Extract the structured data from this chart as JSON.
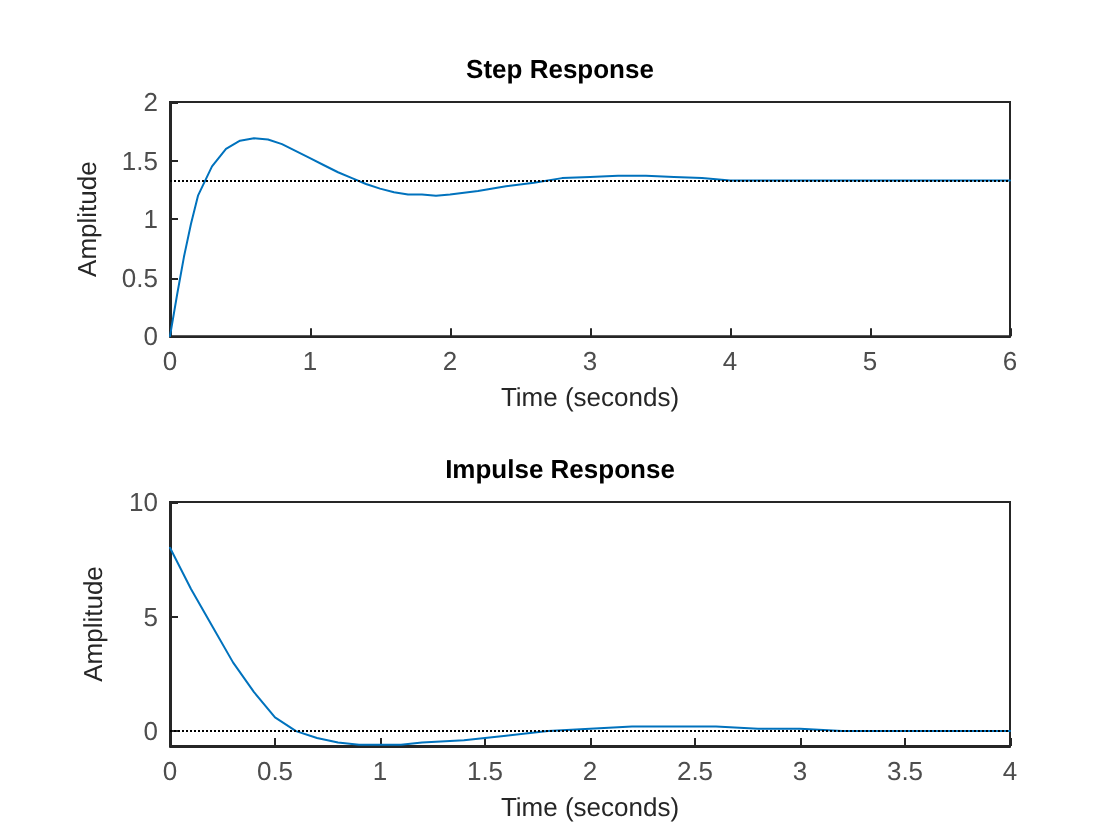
{
  "chart_data": [
    {
      "type": "line",
      "title": "Step Response",
      "xlabel": "Time (seconds)",
      "ylabel": "Amplitude",
      "xlim": [
        0,
        6
      ],
      "xticks": [
        0,
        1,
        2,
        3,
        4,
        5,
        6
      ],
      "ylim": [
        0,
        2
      ],
      "yticks": [
        0,
        0.5,
        1,
        1.5,
        2
      ],
      "marker": "none",
      "line_style": "solid",
      "ref_lines": [
        {
          "axis": "y",
          "value": 1.33,
          "label": null,
          "color": "#000000",
          "line_style": "dotted"
        }
      ],
      "series": [
        {
          "color": "#0072bd",
          "x": [
            0,
            0.05,
            0.1,
            0.15,
            0.2,
            0.3,
            0.4,
            0.5,
            0.6,
            0.7,
            0.8,
            0.9,
            1.0,
            1.1,
            1.2,
            1.3,
            1.4,
            1.5,
            1.6,
            1.7,
            1.8,
            1.9,
            2.0,
            2.2,
            2.4,
            2.6,
            2.8,
            3.0,
            3.2,
            3.4,
            3.6,
            3.8,
            4.0,
            5.0,
            6.0
          ],
          "values": [
            0,
            0.35,
            0.68,
            0.96,
            1.2,
            1.45,
            1.6,
            1.67,
            1.69,
            1.68,
            1.64,
            1.58,
            1.52,
            1.46,
            1.4,
            1.35,
            1.3,
            1.26,
            1.23,
            1.21,
            1.21,
            1.2,
            1.21,
            1.24,
            1.28,
            1.31,
            1.35,
            1.36,
            1.37,
            1.37,
            1.36,
            1.35,
            1.33,
            1.33,
            1.33
          ]
        }
      ]
    },
    {
      "type": "line",
      "title": "Impulse Response",
      "xlabel": "Time (seconds)",
      "ylabel": "Amplitude",
      "xlim": [
        0,
        4
      ],
      "xticks": [
        0,
        0.5,
        1,
        1.5,
        2,
        2.5,
        3,
        3.5,
        4
      ],
      "ylim": [
        -0.65,
        10
      ],
      "yticks": [
        0,
        5,
        10
      ],
      "marker": "none",
      "line_style": "solid",
      "ref_lines": [
        {
          "axis": "y",
          "value": 0,
          "label": null,
          "color": "#000000",
          "line_style": "dotted"
        }
      ],
      "series": [
        {
          "color": "#0072bd",
          "x": [
            0,
            0.1,
            0.2,
            0.3,
            0.4,
            0.5,
            0.6,
            0.7,
            0.8,
            0.9,
            1.0,
            1.1,
            1.2,
            1.4,
            1.6,
            1.8,
            2.0,
            2.2,
            2.4,
            2.6,
            2.8,
            3.0,
            3.2,
            3.5,
            4.0
          ],
          "values": [
            8,
            6.2,
            4.6,
            3.0,
            1.7,
            0.6,
            0,
            -0.3,
            -0.5,
            -0.6,
            -0.6,
            -0.6,
            -0.5,
            -0.4,
            -0.2,
            0,
            0.1,
            0.2,
            0.2,
            0.2,
            0.1,
            0.1,
            0,
            0,
            0
          ]
        }
      ]
    }
  ]
}
